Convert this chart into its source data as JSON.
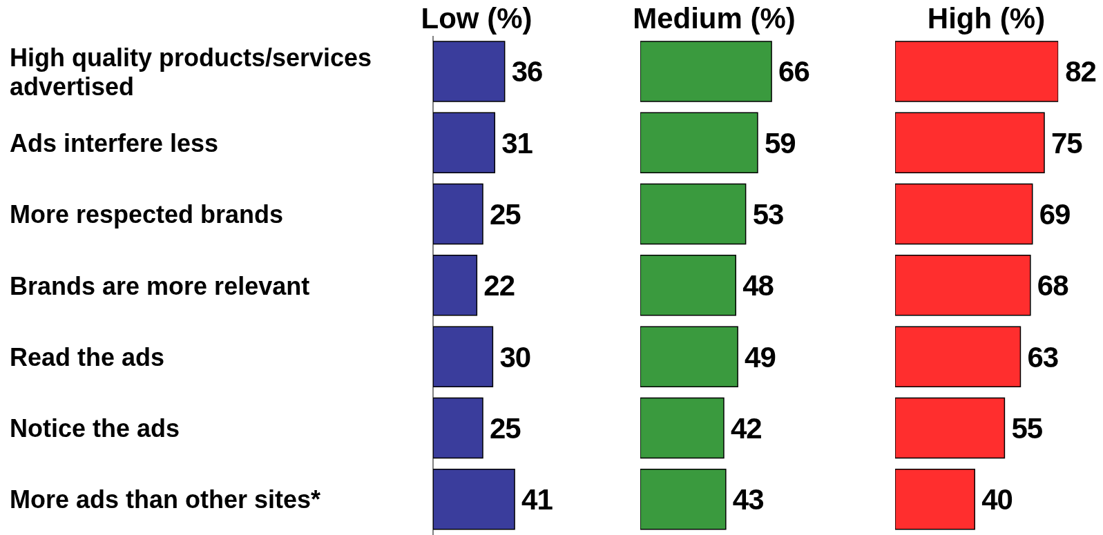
{
  "chart_data": [
    {
      "type": "bar",
      "orientation": "horizontal",
      "title": "Low (%)",
      "categories": [
        "High quality products/services advertised",
        "Ads interfere less",
        "More respected brands",
        "Brands are more relevant",
        "Read the ads",
        "Notice the ads",
        "More ads than other sites*"
      ],
      "series": [
        {
          "color": "#3a3d9c",
          "values": [
            36,
            31,
            25,
            22,
            30,
            25,
            41
          ]
        }
      ],
      "tick_labels": "y",
      "data_labels": true
    },
    {
      "type": "bar",
      "orientation": "horizontal",
      "title": "Medium (%)",
      "categories": [
        null,
        null,
        null,
        null,
        null,
        null,
        null
      ],
      "series": [
        {
          "color": "#3a9a3e",
          "values": [
            66,
            59,
            53,
            48,
            49,
            42,
            43
          ]
        }
      ],
      "tick_labels": false,
      "data_labels": true
    },
    {
      "type": "bar",
      "orientation": "horizontal",
      "title": "High (%)",
      "categories": [
        null,
        null,
        null,
        null,
        null,
        null,
        null
      ],
      "series": [
        {
          "color": "#ff2e2e",
          "values": [
            82,
            75,
            69,
            68,
            63,
            55,
            40
          ]
        }
      ],
      "tick_labels": false,
      "data_labels": true
    }
  ]
}
